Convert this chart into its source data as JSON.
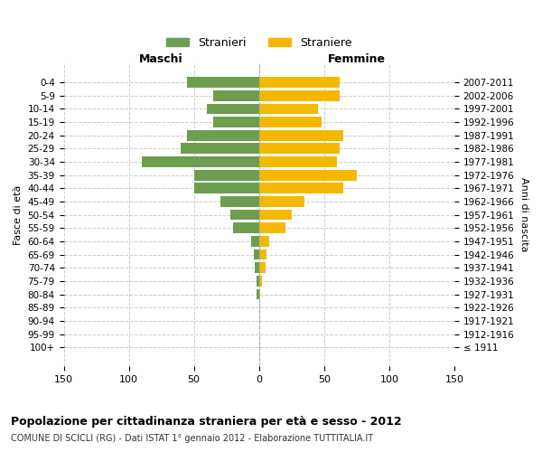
{
  "age_groups": [
    "100+",
    "95-99",
    "90-94",
    "85-89",
    "80-84",
    "75-79",
    "70-74",
    "65-69",
    "60-64",
    "55-59",
    "50-54",
    "45-49",
    "40-44",
    "35-39",
    "30-34",
    "25-29",
    "20-24",
    "15-19",
    "10-14",
    "5-9",
    "0-4"
  ],
  "birth_years": [
    "≤ 1911",
    "1912-1916",
    "1917-1921",
    "1922-1926",
    "1927-1931",
    "1932-1936",
    "1937-1941",
    "1942-1946",
    "1947-1951",
    "1952-1956",
    "1957-1961",
    "1962-1966",
    "1967-1971",
    "1972-1976",
    "1977-1981",
    "1982-1986",
    "1987-1991",
    "1992-1996",
    "1997-2001",
    "2002-2006",
    "2007-2011"
  ],
  "maschi": [
    0,
    0,
    0,
    0,
    2,
    2,
    3,
    4,
    6,
    20,
    22,
    30,
    50,
    50,
    90,
    60,
    55,
    35,
    40,
    35,
    55
  ],
  "femmine": [
    0,
    0,
    0,
    0,
    1,
    2,
    5,
    6,
    8,
    20,
    25,
    35,
    65,
    75,
    60,
    62,
    65,
    48,
    45,
    62,
    62
  ],
  "maschi_color": "#6d9e4f",
  "femmine_color": "#f5b800",
  "title": "Popolazione per cittadinanza straniera per età e sesso - 2012",
  "subtitle": "COMUNE DI SCICLI (RG) - Dati ISTAT 1° gennaio 2012 - Elaborazione TUTTITALIA.IT",
  "xlabel_left": "Maschi",
  "xlabel_right": "Femmine",
  "ylabel_left": "Fasce di età",
  "ylabel_right": "Anni di nascita",
  "legend_maschi": "Stranieri",
  "legend_femmine": "Straniere",
  "xlim": 150,
  "bg_color": "#ffffff",
  "grid_color": "#cccccc",
  "bar_height": 0.8
}
